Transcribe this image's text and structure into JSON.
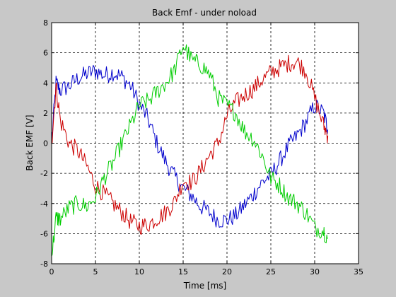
{
  "colors": {
    "figure_bg": "#c8c8c8",
    "axes_bg": "#ffffff"
  },
  "chart_data": {
    "type": "line",
    "title": "Back Emf - under noload",
    "xlabel": "Time [ms]",
    "ylabel": "Back EMF [V]",
    "xlim": [
      0,
      35
    ],
    "ylim": [
      -8,
      8
    ],
    "xticks": [
      0,
      5,
      10,
      15,
      20,
      25,
      30,
      35
    ],
    "yticks": [
      -8,
      -6,
      -4,
      -2,
      0,
      2,
      4,
      6,
      8
    ],
    "grid": true,
    "noise_amplitude": 0.6,
    "series": [
      {
        "color": "#0000cc",
        "x": [
          0,
          0.5,
          1,
          2,
          3,
          4,
          5,
          6,
          7,
          8,
          9,
          10,
          11,
          12,
          13,
          14,
          15,
          16,
          17,
          18,
          19,
          20,
          21,
          22,
          23,
          24,
          25,
          26,
          27,
          28,
          29,
          30,
          31,
          31.5
        ],
        "y": [
          0,
          4.0,
          3.5,
          3.8,
          4.3,
          4.6,
          4.8,
          4.5,
          4.7,
          4.4,
          3.8,
          2.6,
          1.6,
          0.0,
          -1.2,
          -2.2,
          -3.0,
          -3.5,
          -4.2,
          -4.6,
          -5.1,
          -5.1,
          -4.8,
          -4.1,
          -3.4,
          -2.6,
          -2.1,
          -1.2,
          -0.2,
          0.5,
          1.4,
          2.5,
          2.0,
          0.9
        ]
      },
      {
        "color": "#cc0000",
        "x": [
          0,
          0.5,
          1,
          2,
          3,
          4,
          5,
          6,
          7,
          8,
          9,
          10,
          11,
          12,
          13,
          14,
          15,
          16,
          17,
          18,
          19,
          20,
          21,
          22,
          23,
          24,
          25,
          26,
          27,
          28,
          29,
          30,
          31,
          31.5
        ],
        "y": [
          0,
          3.8,
          1.5,
          0.0,
          -0.5,
          -1.5,
          -2.8,
          -3.4,
          -4.0,
          -4.6,
          -5.2,
          -5.5,
          -5.4,
          -5.0,
          -4.6,
          -3.9,
          -2.5,
          -2.6,
          -1.8,
          -0.8,
          0.0,
          1.8,
          2.7,
          3.2,
          3.6,
          4.2,
          4.7,
          5.0,
          5.3,
          5.4,
          4.8,
          3.0,
          1.2,
          0.5
        ]
      },
      {
        "color": "#00cc00",
        "x": [
          0,
          0.5,
          1,
          2,
          3,
          4,
          5,
          6,
          7,
          8,
          9,
          10,
          11,
          12,
          13,
          14,
          15,
          16,
          17,
          18,
          19,
          20,
          21,
          22,
          23,
          24,
          25,
          26,
          27,
          28,
          29,
          30,
          31,
          31.5
        ],
        "y": [
          -7.5,
          -5.0,
          -5.0,
          -4.3,
          -4.0,
          -4.2,
          -3.6,
          -2.3,
          -1.3,
          0.0,
          1.2,
          2.5,
          2.8,
          3.4,
          4.0,
          4.8,
          6.5,
          5.5,
          5.2,
          4.6,
          3.0,
          2.5,
          2.0,
          0.8,
          0.3,
          -0.8,
          -2.3,
          -2.8,
          -3.6,
          -4.0,
          -4.6,
          -5.6,
          -5.8,
          -6.3
        ]
      }
    ]
  }
}
